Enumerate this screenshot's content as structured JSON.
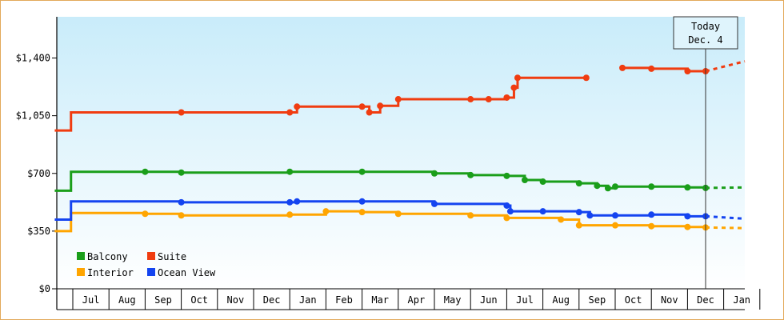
{
  "chart_data": {
    "type": "line",
    "title": "",
    "xlabel": "",
    "ylabel": "",
    "ylim": [
      0,
      1650
    ],
    "yticks": [
      0,
      350,
      700,
      1050,
      1400
    ],
    "ytick_labels": [
      "$0",
      "$350",
      "$700",
      "$1,050",
      "$1,400"
    ],
    "x_months": [
      "Jul",
      "Aug",
      "Sep",
      "Oct",
      "Nov",
      "Dec",
      "Jan",
      "Feb",
      "Mar",
      "Apr",
      "May",
      "Jun",
      "Jul",
      "Aug",
      "Sep",
      "Oct",
      "Nov",
      "Dec",
      "Jan"
    ],
    "today_label": [
      "Today",
      "Dec. 4"
    ],
    "legend_placement": "bottom-left",
    "grid": false,
    "series": [
      {
        "name": "Balcony",
        "color": "#1a9e1a",
        "values": [
          [
            -0.5,
            595
          ],
          [
            -0.05,
            595
          ],
          [
            -0.05,
            710
          ],
          [
            2.0,
            710
          ],
          [
            3.0,
            705
          ],
          [
            6.0,
            710
          ],
          [
            8.0,
            710
          ],
          [
            10.0,
            700
          ],
          [
            11.0,
            690
          ],
          [
            12.0,
            685
          ],
          [
            12.5,
            660
          ],
          [
            13.0,
            650
          ],
          [
            14.0,
            640
          ],
          [
            14.5,
            625
          ],
          [
            14.8,
            610
          ],
          [
            15.0,
            620
          ],
          [
            16.0,
            620
          ],
          [
            17.0,
            615
          ],
          [
            17.5,
            612
          ]
        ],
        "forecast": [
          [
            17.5,
            612
          ],
          [
            19.0,
            615
          ]
        ]
      },
      {
        "name": "Suite",
        "color": "#f03c10",
        "values": [
          [
            -0.5,
            960
          ],
          [
            -0.05,
            960
          ],
          [
            -0.05,
            1070
          ],
          [
            3.0,
            1070
          ],
          [
            6.0,
            1070
          ],
          [
            6.2,
            1105
          ],
          [
            8.0,
            1105
          ],
          [
            8.2,
            1070
          ],
          [
            8.5,
            1110
          ],
          [
            9.0,
            1150
          ],
          [
            11.0,
            1150
          ],
          [
            11.5,
            1150
          ],
          [
            12.0,
            1160
          ],
          [
            12.2,
            1220
          ],
          [
            12.3,
            1280
          ],
          [
            14.2,
            1280
          ]
        ],
        "values_late": [
          [
            15.2,
            1340
          ],
          [
            16.0,
            1335
          ],
          [
            17.0,
            1320
          ],
          [
            17.5,
            1320
          ]
        ],
        "forecast": [
          [
            17.5,
            1320
          ],
          [
            19.0,
            1380
          ]
        ]
      },
      {
        "name": "Interior",
        "color": "#ffa500",
        "values": [
          [
            -0.5,
            350
          ],
          [
            -0.05,
            350
          ],
          [
            -0.05,
            460
          ],
          [
            2.0,
            455
          ],
          [
            3.0,
            445
          ],
          [
            6.0,
            450
          ],
          [
            7.0,
            470
          ],
          [
            8.0,
            465
          ],
          [
            9.0,
            455
          ],
          [
            11.0,
            445
          ],
          [
            12.0,
            430
          ],
          [
            13.5,
            420
          ],
          [
            14.0,
            385
          ],
          [
            15.0,
            385
          ],
          [
            16.0,
            380
          ],
          [
            17.0,
            375
          ],
          [
            17.5,
            372
          ]
        ],
        "forecast": [
          [
            17.5,
            372
          ],
          [
            19.0,
            368
          ]
        ]
      },
      {
        "name": "Ocean View",
        "color": "#1444f0",
        "values": [
          [
            -0.5,
            420
          ],
          [
            -0.05,
            420
          ],
          [
            -0.05,
            530
          ],
          [
            3.0,
            525
          ],
          [
            6.0,
            525
          ],
          [
            6.2,
            530
          ],
          [
            8.0,
            530
          ],
          [
            10.0,
            515
          ],
          [
            12.0,
            505
          ],
          [
            12.1,
            470
          ],
          [
            13.0,
            470
          ],
          [
            14.0,
            465
          ],
          [
            14.3,
            445
          ],
          [
            15.0,
            445
          ],
          [
            16.0,
            450
          ],
          [
            17.0,
            440
          ],
          [
            17.5,
            440
          ]
        ],
        "forecast": [
          [
            17.5,
            440
          ],
          [
            19.0,
            425
          ]
        ]
      }
    ]
  }
}
